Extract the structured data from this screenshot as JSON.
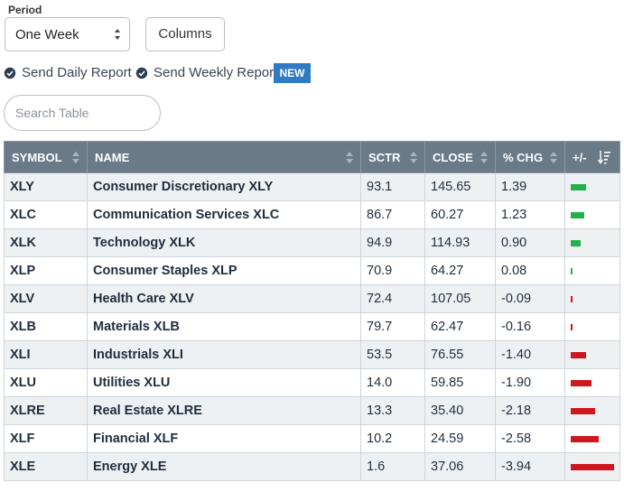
{
  "controls": {
    "period_label": "Period",
    "period_value": "One Week",
    "columns_label": "Columns",
    "daily_report_label": "Send Daily Report",
    "weekly_report_label": "Send Weekly Report",
    "new_badge": "NEW",
    "search_placeholder": "Search Table"
  },
  "colors": {
    "header_bg": "#6b7a89",
    "positive": "#22b14c",
    "negative": "#d0161d",
    "badge": "#2f7bc4",
    "check": "#2c3e50"
  },
  "table": {
    "headers": {
      "symbol": "SYMBOL",
      "name": "NAME",
      "sctr": "SCTR",
      "close": "CLOSE",
      "chg": "% CHG",
      "plusminus": "+/-"
    },
    "rows": [
      {
        "symbol": "XLY",
        "name": "Consumer Discretionary XLY",
        "sctr": "93.1",
        "close": "145.65",
        "chg": "1.39",
        "chg_value": 1.39
      },
      {
        "symbol": "XLC",
        "name": "Communication Services XLC",
        "sctr": "86.7",
        "close": "60.27",
        "chg": "1.23",
        "chg_value": 1.23
      },
      {
        "symbol": "XLK",
        "name": "Technology XLK",
        "sctr": "94.9",
        "close": "114.93",
        "chg": "0.90",
        "chg_value": 0.9
      },
      {
        "symbol": "XLP",
        "name": "Consumer Staples XLP",
        "sctr": "70.9",
        "close": "64.27",
        "chg": "0.08",
        "chg_value": 0.08
      },
      {
        "symbol": "XLV",
        "name": "Health Care XLV",
        "sctr": "72.4",
        "close": "107.05",
        "chg": "-0.09",
        "chg_value": -0.09
      },
      {
        "symbol": "XLB",
        "name": "Materials XLB",
        "sctr": "79.7",
        "close": "62.47",
        "chg": "-0.16",
        "chg_value": -0.16
      },
      {
        "symbol": "XLI",
        "name": "Industrials XLI",
        "sctr": "53.5",
        "close": "76.55",
        "chg": "-1.40",
        "chg_value": -1.4
      },
      {
        "symbol": "XLU",
        "name": "Utilities XLU",
        "sctr": "14.0",
        "close": "59.85",
        "chg": "-1.90",
        "chg_value": -1.9
      },
      {
        "symbol": "XLRE",
        "name": "Real Estate XLRE",
        "sctr": "13.3",
        "close": "35.40",
        "chg": "-2.18",
        "chg_value": -2.18
      },
      {
        "symbol": "XLF",
        "name": "Financial XLF",
        "sctr": "10.2",
        "close": "24.59",
        "chg": "-2.58",
        "chg_value": -2.58
      },
      {
        "symbol": "XLE",
        "name": "Energy XLE",
        "sctr": "1.6",
        "close": "37.06",
        "chg": "-3.94",
        "chg_value": -3.94
      }
    ]
  }
}
